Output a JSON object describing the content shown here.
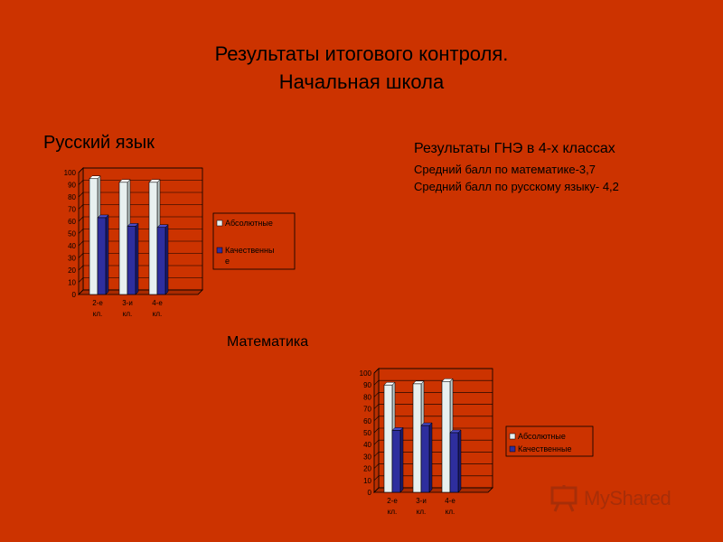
{
  "header": {
    "title_line1": "Результаты итогового контроля.",
    "title_line2": "Начальная школа"
  },
  "labels": {
    "russian": "Русский язык",
    "math": "Математика"
  },
  "info": {
    "heading": "Результаты ГНЭ в 4-х классах",
    "line1": "Средний балл по математике-3,7",
    "line2": "Средний балл по русскому языку- 4,2"
  },
  "watermark": {
    "text": "MyShared",
    "icon": "chalkboard-icon"
  },
  "colors": {
    "background": "#cc3300",
    "plot_area": "#cc3300",
    "series_absolute": "#e8f0f0",
    "series_quality": "#2e2e9e"
  },
  "chart_data": [
    {
      "type": "bar",
      "title": "",
      "categories": [
        [
          "2-е",
          "кл."
        ],
        [
          "3-и",
          "кл."
        ],
        [
          "4-е",
          "кл."
        ]
      ],
      "series": [
        {
          "name": "Абсолютные",
          "values": [
            95,
            92,
            92
          ]
        },
        {
          "name": "Качественные",
          "values": [
            63,
            56,
            55
          ]
        }
      ],
      "legend_lines": [
        [
          "Абсолютные"
        ],
        [
          "Качественны",
          "е"
        ]
      ],
      "ylim": [
        0,
        100
      ],
      "yticks": [
        0,
        10,
        20,
        30,
        40,
        50,
        60,
        70,
        80,
        90,
        100
      ],
      "grid": true,
      "legend": "right"
    },
    {
      "type": "bar",
      "title": "",
      "categories": [
        [
          "2-е",
          "кл."
        ],
        [
          "3-и",
          "кл."
        ],
        [
          "4-е",
          "кл."
        ]
      ],
      "series": [
        {
          "name": "Абсолютные",
          "values": [
            90,
            91,
            93
          ]
        },
        {
          "name": "Качественные",
          "values": [
            52,
            56,
            50
          ]
        }
      ],
      "legend_lines": [
        [
          "Абсолютные"
        ],
        [
          "Качественные"
        ]
      ],
      "ylim": [
        0,
        100
      ],
      "yticks": [
        0,
        10,
        20,
        30,
        40,
        50,
        60,
        70,
        80,
        90,
        100
      ],
      "grid": true,
      "legend": "right"
    }
  ]
}
